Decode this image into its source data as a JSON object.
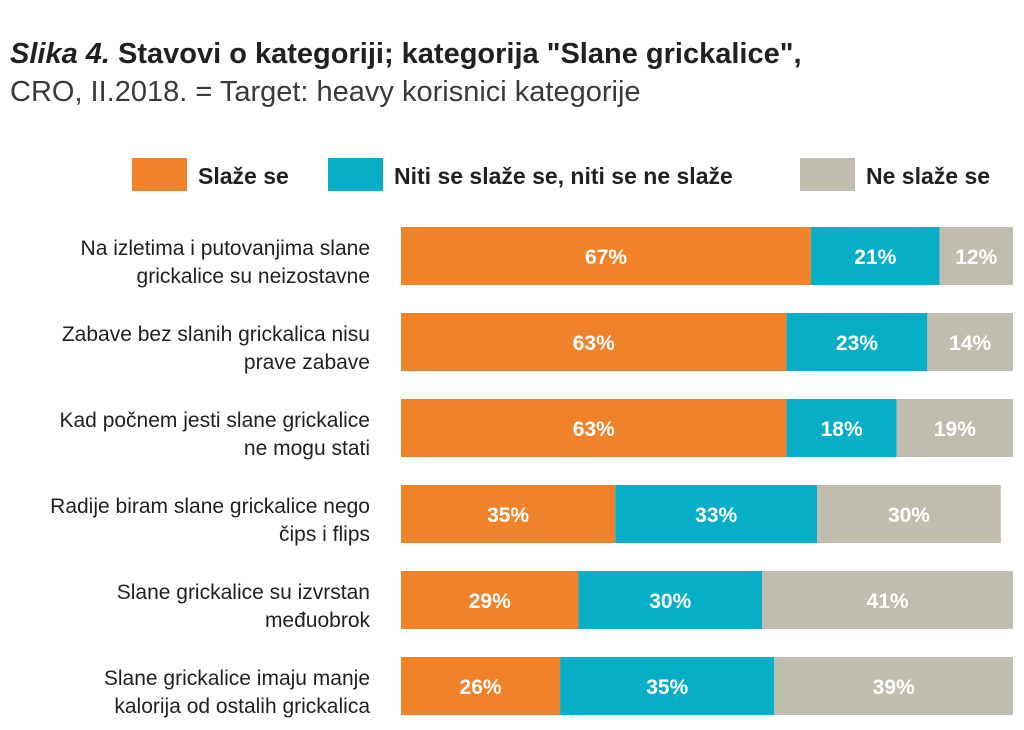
{
  "header": {
    "title_lead": "Slika 4.",
    "title_main": "Stavovi o kategoriji; kategorija \"Slane grickalice\",",
    "subtitle": "CRO, II.2018. = Target: heavy korisnici kategorije"
  },
  "chart_data": {
    "type": "bar",
    "orientation": "horizontal",
    "stacked": true,
    "percent": true,
    "xlim": [
      0,
      100
    ],
    "grid": false,
    "legend_position": "top",
    "categories": [
      [
        "Na izletima i putovanjima slane",
        "grickalice su neizostavne"
      ],
      [
        "Zabave bez slanih grickalica nisu",
        "prave zabave"
      ],
      [
        "Kad počnem jesti slane grickalice",
        "ne mogu stati"
      ],
      [
        "Radije biram slane grickalice nego",
        "čips i flips"
      ],
      [
        "Slane grickalice su izvrstan",
        "međuobrok"
      ],
      [
        "Slane grickalice imaju manje",
        "kalorija od ostalih grickalica"
      ]
    ],
    "series": [
      {
        "name": "Slaže se",
        "color": "#f0822a",
        "values": [
          67,
          63,
          63,
          35,
          29,
          26
        ],
        "labels": [
          "67%",
          "63%",
          "63%",
          "35%",
          "29%",
          "26%"
        ]
      },
      {
        "name": "Niti se slaže se, niti se ne slaže",
        "color": "#06aec8",
        "values": [
          21,
          23,
          18,
          33,
          30,
          35
        ],
        "labels": [
          "21%",
          "23%",
          "18%",
          "33%",
          "30%",
          "35%"
        ]
      },
      {
        "name": "Ne slaže se",
        "color": "#c0bcae",
        "values": [
          12,
          14,
          19,
          30,
          41,
          39
        ],
        "labels": [
          "12%",
          "14%",
          "19%",
          "30%",
          "41%",
          "39%"
        ]
      }
    ]
  }
}
